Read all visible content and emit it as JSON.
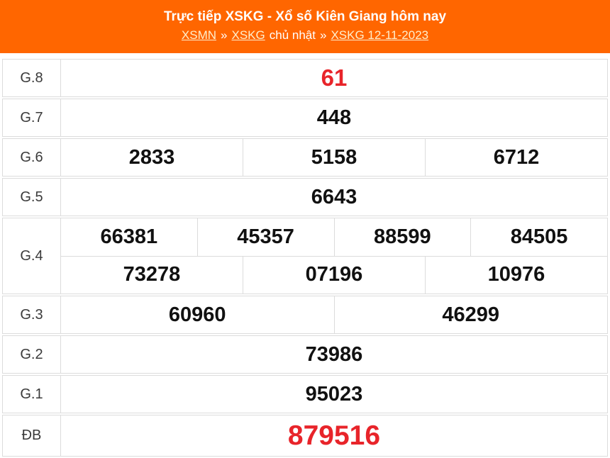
{
  "header": {
    "title": "Trực tiếp XSKG - Xổ số Kiên Giang hôm nay",
    "breadcrumb": {
      "separator": "»",
      "parts": [
        {
          "type": "link",
          "label": "XSMN"
        },
        {
          "type": "sep"
        },
        {
          "type": "link",
          "label": "XSKG"
        },
        {
          "type": "text",
          "label": "chủ nhật"
        },
        {
          "type": "sep"
        },
        {
          "type": "link",
          "label": "XSKG 12-11-2023"
        }
      ]
    },
    "bg_color": "#ff6600",
    "link_color": "#ffeecc"
  },
  "colors": {
    "highlight_red": "#e8242a",
    "number_black": "#111111",
    "border_gray": "#dcdcdc",
    "label_gray": "#3a3a3a"
  },
  "results": {
    "rows": [
      {
        "key": "g8",
        "label": "G.8",
        "highlight": true,
        "lines": [
          [
            "61"
          ]
        ]
      },
      {
        "key": "g7",
        "label": "G.7",
        "highlight": false,
        "lines": [
          [
            "448"
          ]
        ]
      },
      {
        "key": "g6",
        "label": "G.6",
        "highlight": false,
        "lines": [
          [
            "2833",
            "5158",
            "6712"
          ]
        ]
      },
      {
        "key": "g5",
        "label": "G.5",
        "highlight": false,
        "lines": [
          [
            "6643"
          ]
        ]
      },
      {
        "key": "g4",
        "label": "G.4",
        "highlight": false,
        "lines": [
          [
            "66381",
            "45357",
            "88599",
            "84505"
          ],
          [
            "73278",
            "07196",
            "10976"
          ]
        ]
      },
      {
        "key": "g3",
        "label": "G.3",
        "highlight": false,
        "lines": [
          [
            "60960",
            "46299"
          ]
        ]
      },
      {
        "key": "g2",
        "label": "G.2",
        "highlight": false,
        "lines": [
          [
            "73986"
          ]
        ]
      },
      {
        "key": "g1",
        "label": "G.1",
        "highlight": false,
        "lines": [
          [
            "95023"
          ]
        ]
      },
      {
        "key": "db",
        "label": "ĐB",
        "highlight": true,
        "large": true,
        "lines": [
          [
            "879516"
          ]
        ]
      }
    ]
  }
}
